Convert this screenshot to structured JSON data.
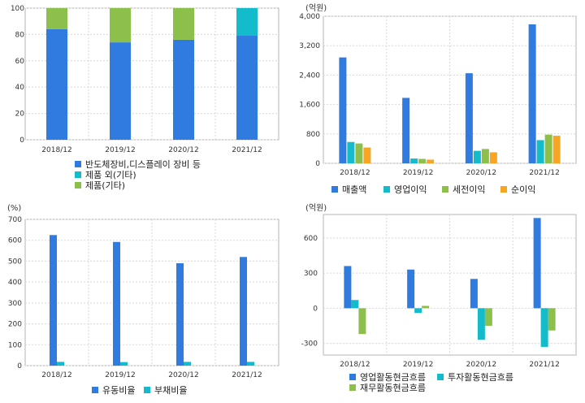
{
  "colors": {
    "blue": "#2f7be0",
    "cyan": "#14bccb",
    "green": "#8cc04b",
    "orange": "#f7a623",
    "grid": "#d9d9d9",
    "border": "#b5b5b5"
  },
  "chart_data": [
    {
      "id": "revenue-mix",
      "type": "bar",
      "stacked": true,
      "unit_label": "",
      "categories": [
        "2018/12",
        "2019/12",
        "2020/12",
        "2021/12"
      ],
      "ylim": [
        0,
        100
      ],
      "yticks": [
        0,
        20,
        40,
        60,
        80,
        100
      ],
      "ytick_labels": [
        "0",
        "20",
        "40",
        "60",
        "80",
        "100"
      ],
      "series": [
        {
          "name": "반도체장비,디스플레이 장비 등",
          "color": "#2f7be0",
          "values": [
            84,
            74,
            76,
            79
          ]
        },
        {
          "name": "제품 외(기타)",
          "color": "#14bccb",
          "values": [
            0,
            0,
            0,
            21
          ]
        },
        {
          "name": "제품(기타)",
          "color": "#8cc04b",
          "values": [
            16,
            26,
            24,
            0
          ]
        }
      ]
    },
    {
      "id": "income",
      "type": "bar",
      "stacked": false,
      "unit_label": "(억원)",
      "categories": [
        "2018/12",
        "2019/12",
        "2020/12",
        "2021/12"
      ],
      "ylim": [
        0,
        4000
      ],
      "yticks": [
        0,
        800,
        1600,
        2400,
        3200,
        4000
      ],
      "ytick_labels": [
        "0",
        "800",
        "1,600",
        "2,400",
        "3,200",
        "4,000"
      ],
      "series": [
        {
          "name": "매출액",
          "color": "#2f7be0",
          "values": [
            2880,
            1780,
            2450,
            3780
          ]
        },
        {
          "name": "영업이익",
          "color": "#14bccb",
          "values": [
            580,
            130,
            340,
            630
          ]
        },
        {
          "name": "세전이익",
          "color": "#8cc04b",
          "values": [
            540,
            120,
            390,
            780
          ]
        },
        {
          "name": "순이익",
          "color": "#f7a623",
          "values": [
            430,
            100,
            300,
            750
          ]
        }
      ]
    },
    {
      "id": "ratios",
      "type": "bar",
      "stacked": false,
      "unit_label": "(%)",
      "categories": [
        "2018/12",
        "2019/12",
        "2020/12",
        "2021/12"
      ],
      "ylim": [
        0,
        700
      ],
      "yticks": [
        0,
        100,
        200,
        300,
        400,
        500,
        600,
        700
      ],
      "ytick_labels": [
        "0",
        "100",
        "200",
        "300",
        "400",
        "500",
        "600",
        "700"
      ],
      "series": [
        {
          "name": "유동비율",
          "color": "#2f7be0",
          "values": [
            625,
            592,
            490,
            520
          ]
        },
        {
          "name": "부채비율",
          "color": "#14bccb",
          "values": [
            18,
            17,
            18,
            18
          ]
        }
      ]
    },
    {
      "id": "cashflow",
      "type": "bar",
      "stacked": false,
      "unit_label": "(억원)",
      "categories": [
        "2018/12",
        "2019/12",
        "2020/12",
        "2021/12"
      ],
      "ylim": [
        -400,
        800
      ],
      "yticks": [
        -300,
        0,
        300,
        600
      ],
      "ytick_labels": [
        "-300",
        "0",
        "300",
        "600"
      ],
      "series": [
        {
          "name": "영업활동현금흐름",
          "color": "#2f7be0",
          "values": [
            360,
            330,
            250,
            770
          ]
        },
        {
          "name": "투자활동현금흐름",
          "color": "#14bccb",
          "values": [
            70,
            -40,
            -270,
            -330
          ]
        },
        {
          "name": "재무활동현금흐름",
          "color": "#8cc04b",
          "values": [
            -220,
            20,
            -150,
            -190
          ]
        }
      ]
    }
  ]
}
